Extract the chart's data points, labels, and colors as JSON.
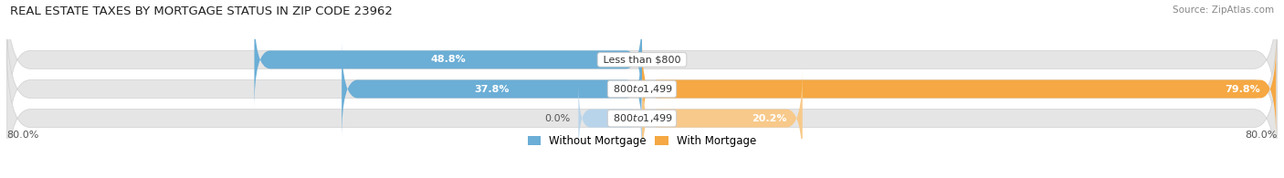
{
  "title": "REAL ESTATE TAXES BY MORTGAGE STATUS IN ZIP CODE 23962",
  "source": "Source: ZipAtlas.com",
  "rows": [
    {
      "label": "Less than $800",
      "without_mortgage": 48.8,
      "with_mortgage": 0.0
    },
    {
      "label": "$800 to $1,499",
      "without_mortgage": 37.8,
      "with_mortgage": 79.8
    },
    {
      "label": "$800 to $1,499",
      "without_mortgage": 0.0,
      "with_mortgage": 20.2
    }
  ],
  "x_max": 80.0,
  "x_left_label": "80.0%",
  "x_right_label": "80.0%",
  "color_without": "#6baed6",
  "color_without_light": "#b8d4ea",
  "color_with": "#f5a843",
  "color_with_light": "#f7c98a",
  "bar_bg_color": "#e5e5e5",
  "bar_bg_border": "#d0d0d0",
  "bar_height": 0.62,
  "label_fontsize": 8.0,
  "pct_fontsize": 8.0,
  "title_fontsize": 9.5,
  "source_fontsize": 7.5,
  "legend_fontsize": 8.5
}
